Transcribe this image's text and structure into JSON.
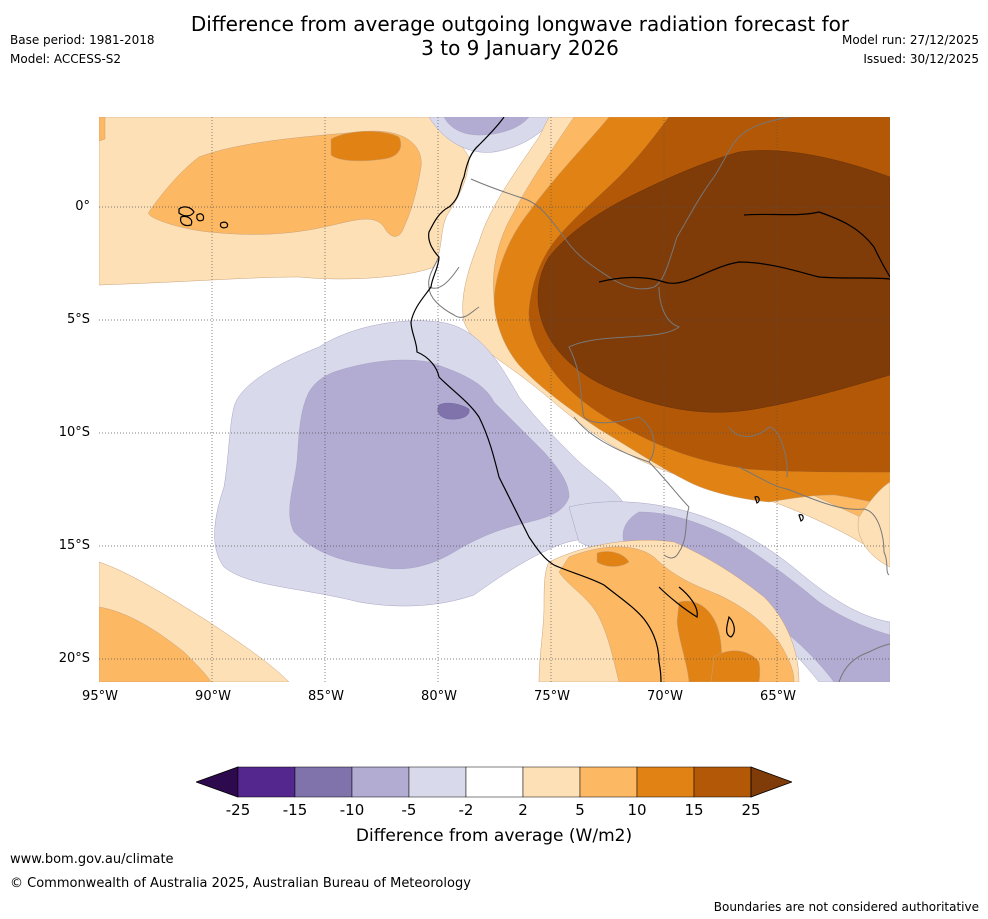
{
  "header": {
    "title_line1": "Difference from average outgoing longwave radiation forecast for",
    "title_line2": "3 to 9 January 2026",
    "base_period": "Base period: 1981-2018",
    "model": "Model: ACCESS-S2",
    "model_run": "Model run: 27/12/2025",
    "issued": "Issued: 30/12/2025"
  },
  "map": {
    "lat_labels": [
      "0°",
      "5°S",
      "10°S",
      "15°S",
      "20°S"
    ],
    "lon_labels": [
      "95°W",
      "90°W",
      "85°W",
      "80°W",
      "75°W",
      "70°W",
      "65°W"
    ]
  },
  "legend": {
    "title": "Difference from average (W/m2)",
    "ticks": [
      "-25",
      "-15",
      "-10",
      "-5",
      "-2",
      "2",
      "5",
      "10",
      "15",
      "25"
    ],
    "colors": {
      "below_min": "#2d0a4e",
      "m25_m15": "#54278f",
      "m15_m10": "#8073ac",
      "m10_m5": "#b2abd2",
      "m5_m2": "#d8daeb",
      "m2_p2": "#ffffff",
      "p2_p5": "#fee0b6",
      "p5_p10": "#fdb863",
      "p10_p15": "#e08214",
      "p15_p25": "#b35806",
      "above_max": "#7f3b08"
    }
  },
  "footer": {
    "url": "www.bom.gov.au/climate",
    "copyright": "© Commonwealth of Australia 2025, Australian Bureau of Meteorology",
    "disclaimer": "Boundaries are not considered authoritative"
  }
}
